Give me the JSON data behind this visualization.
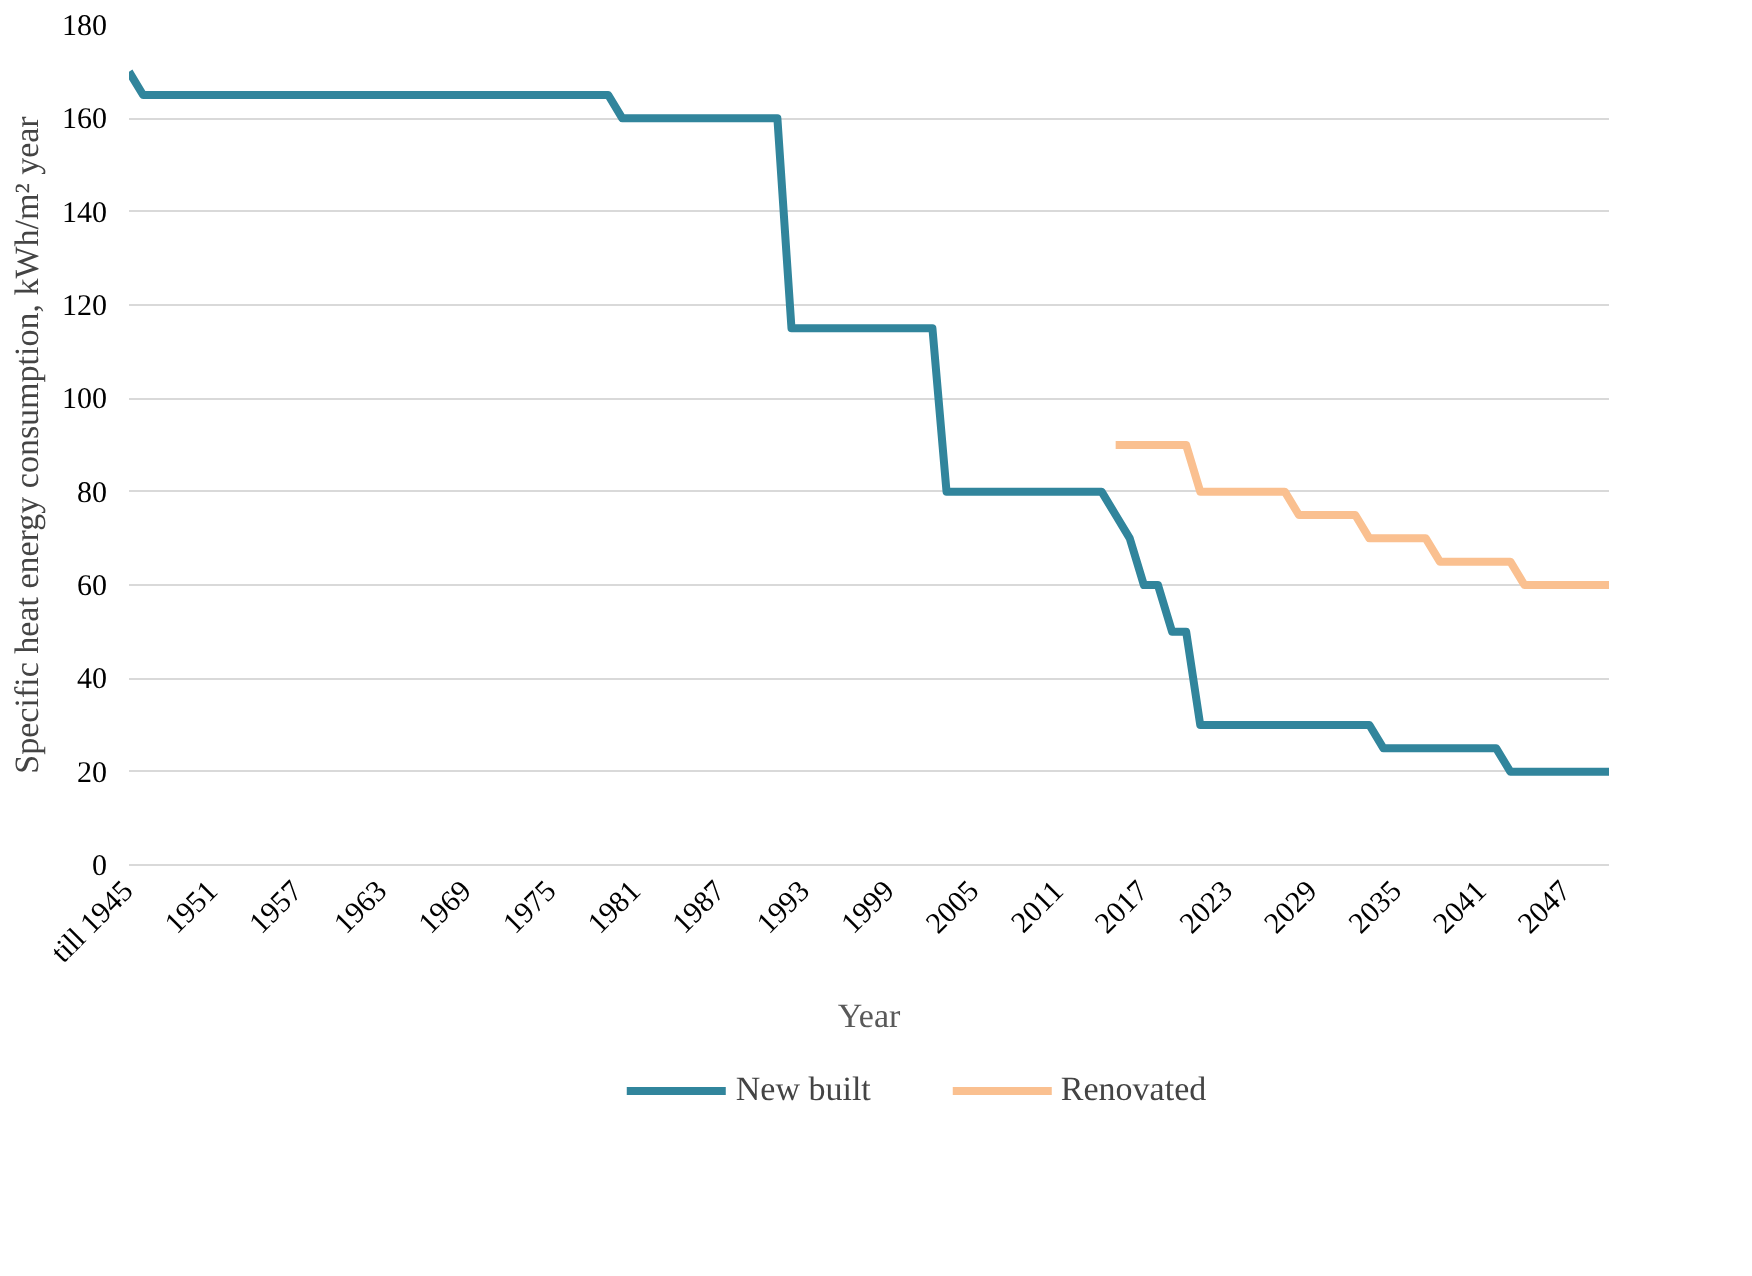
{
  "chart_data": {
    "type": "line",
    "xlabel": "Year",
    "ylabel": "Specific heat energy consumption, kWh/m² year",
    "categories": [
      "till 1945",
      null,
      null,
      null,
      null,
      null,
      "1951",
      null,
      null,
      null,
      null,
      null,
      "1957",
      null,
      null,
      null,
      null,
      null,
      "1963",
      null,
      null,
      null,
      null,
      null,
      "1969",
      null,
      null,
      null,
      null,
      null,
      "1975",
      null,
      null,
      null,
      null,
      null,
      "1981",
      null,
      null,
      null,
      null,
      null,
      "1987",
      null,
      null,
      null,
      null,
      null,
      "1993",
      null,
      null,
      null,
      null,
      null,
      "1999",
      null,
      null,
      null,
      null,
      null,
      "2005",
      null,
      null,
      null,
      null,
      null,
      "2011",
      null,
      null,
      null,
      null,
      null,
      "2017",
      null,
      null,
      null,
      null,
      null,
      "2023",
      null,
      null,
      null,
      null,
      null,
      "2029",
      null,
      null,
      null,
      null,
      null,
      "2035",
      null,
      null,
      null,
      null,
      null,
      "2041",
      null,
      null,
      null,
      null,
      null,
      "2047",
      null,
      null,
      null
    ],
    "series": [
      {
        "name": "New built",
        "color": "#31859c",
        "values": [
          170,
          165,
          165,
          165,
          165,
          165,
          165,
          165,
          165,
          165,
          165,
          165,
          165,
          165,
          165,
          165,
          165,
          165,
          165,
          165,
          165,
          165,
          165,
          165,
          165,
          165,
          165,
          165,
          165,
          165,
          165,
          165,
          165,
          165,
          165,
          160,
          160,
          160,
          160,
          160,
          160,
          160,
          160,
          160,
          160,
          160,
          160,
          115,
          115,
          115,
          115,
          115,
          115,
          115,
          115,
          115,
          115,
          115,
          80,
          80,
          80,
          80,
          80,
          80,
          80,
          80,
          80,
          80,
          80,
          80,
          75,
          70,
          60,
          60,
          50,
          50,
          30,
          30,
          30,
          30,
          30,
          30,
          30,
          30,
          30,
          30,
          30,
          30,
          30,
          25,
          25,
          25,
          25,
          25,
          25,
          25,
          25,
          25,
          20,
          20,
          20,
          20,
          20,
          20,
          20,
          20
        ]
      },
      {
        "name": "Renovated",
        "color": "#fac090",
        "values": [
          null,
          null,
          null,
          null,
          null,
          null,
          null,
          null,
          null,
          null,
          null,
          null,
          null,
          null,
          null,
          null,
          null,
          null,
          null,
          null,
          null,
          null,
          null,
          null,
          null,
          null,
          null,
          null,
          null,
          null,
          null,
          null,
          null,
          null,
          null,
          null,
          null,
          null,
          null,
          null,
          null,
          null,
          null,
          null,
          null,
          null,
          null,
          null,
          null,
          null,
          null,
          null,
          null,
          null,
          null,
          null,
          null,
          null,
          null,
          null,
          null,
          null,
          null,
          null,
          null,
          null,
          null,
          null,
          null,
          null,
          90,
          90,
          90,
          90,
          90,
          90,
          80,
          80,
          80,
          80,
          80,
          80,
          80,
          75,
          75,
          75,
          75,
          75,
          70,
          70,
          70,
          70,
          70,
          65,
          65,
          65,
          65,
          65,
          65,
          60,
          60,
          60,
          60,
          60,
          60,
          60
        ]
      }
    ],
    "ylim": [
      0,
      180
    ],
    "yticks": [
      0,
      20,
      40,
      60,
      80,
      100,
      120,
      140,
      160,
      180
    ],
    "grid": "y",
    "legend": "bottom",
    "line_style": "solid"
  }
}
